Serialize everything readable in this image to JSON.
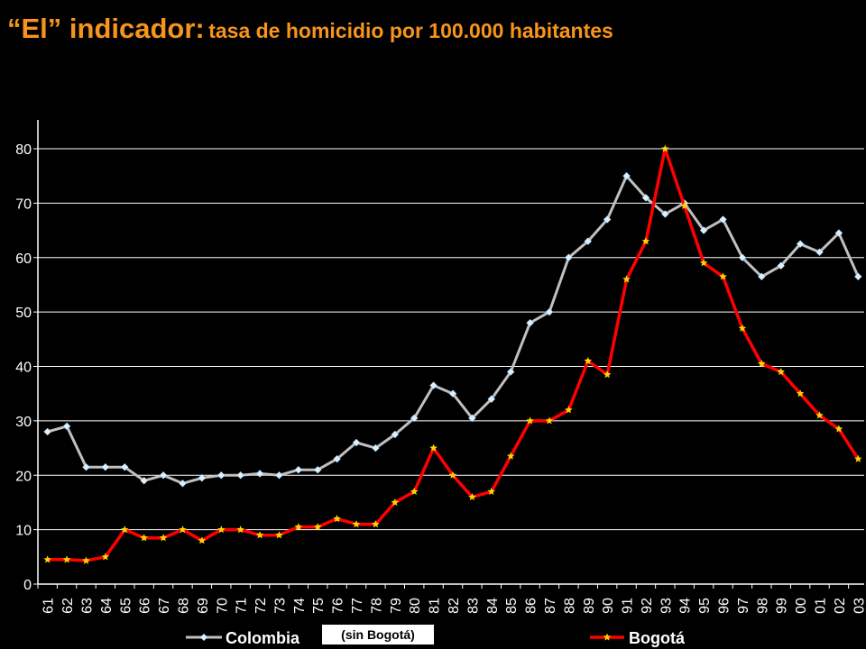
{
  "title": {
    "main": "“El” indicador:",
    "sub": "tasa de homicidio por 100.000 habitantes"
  },
  "chart_data": {
    "type": "line",
    "title": "“El” indicador: tasa de homicidio por 100.000 habitantes",
    "xlabel": "",
    "ylabel": "",
    "ylim": [
      0,
      80
    ],
    "yticks": [
      0,
      10,
      20,
      30,
      40,
      50,
      60,
      70,
      80
    ],
    "grid": true,
    "legend": "bottom",
    "categories": [
      "61",
      "62",
      "63",
      "64",
      "65",
      "66",
      "67",
      "68",
      "69",
      "70",
      "71",
      "72",
      "73",
      "74",
      "75",
      "76",
      "77",
      "78",
      "79",
      "80",
      "81",
      "82",
      "83",
      "84",
      "85",
      "86",
      "87",
      "88",
      "89",
      "90",
      "91",
      "92",
      "93",
      "94",
      "95",
      "96",
      "97",
      "98",
      "99",
      "00",
      "01",
      "02",
      "03"
    ],
    "series": [
      {
        "name": "Colombia",
        "note": "(sin Bogotá)",
        "color": "#c0c0c0",
        "marker": "diamond",
        "values": [
          28,
          29,
          21.5,
          21.5,
          21.5,
          19,
          20,
          18.5,
          19.5,
          20,
          20,
          20.3,
          20,
          21,
          21,
          23,
          26,
          25,
          27.5,
          30.5,
          36.5,
          35,
          30.5,
          34,
          39,
          48,
          50,
          60,
          63,
          67,
          75,
          71,
          68,
          70,
          65,
          67,
          60,
          56.5,
          58.5,
          62.5,
          61,
          64.5,
          56.5
        ]
      },
      {
        "name": "Bogotá",
        "color": "#ff0000",
        "marker": "star",
        "markerColor": "#ffd700",
        "values": [
          4.5,
          4.5,
          4.3,
          5,
          10,
          8.5,
          8.5,
          10,
          8,
          10,
          10,
          9,
          9,
          10.5,
          10.5,
          12,
          11,
          11,
          15,
          17,
          25,
          20,
          16,
          17,
          23.5,
          30,
          30,
          32,
          41,
          38.5,
          56,
          63,
          80,
          69.5,
          59,
          56.5,
          47,
          40.5,
          39,
          35,
          31,
          28.5,
          23
        ]
      }
    ]
  }
}
